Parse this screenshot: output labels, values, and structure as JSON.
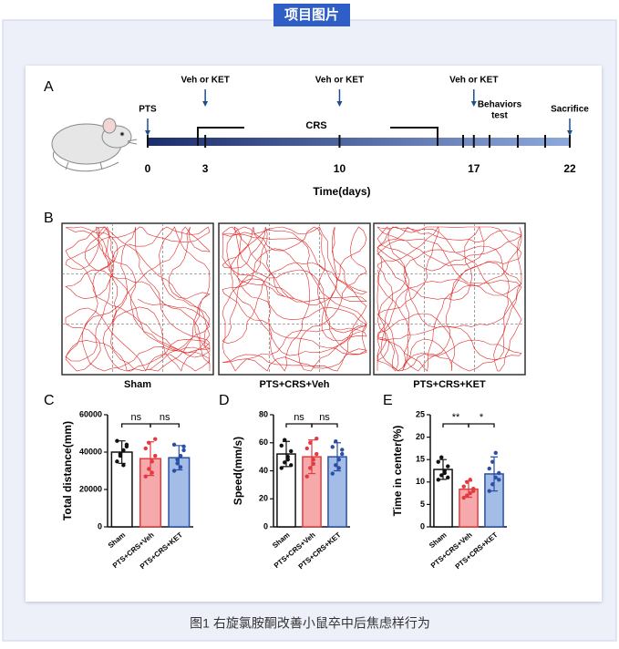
{
  "header": {
    "tag": "项目图片"
  },
  "panel_a": {
    "label": "A",
    "events": [
      "PTS",
      "Veh or KET",
      "Veh or KET",
      "Veh or KET",
      "Sacrifice"
    ],
    "crs_label": "CRS",
    "behaviors_label": [
      "Behaviors",
      "test"
    ],
    "ticks": [
      0,
      3,
      10,
      17,
      22
    ],
    "xlabel": "Time(days)"
  },
  "panel_b": {
    "label": "B",
    "groups": [
      "Sham",
      "PTS+CRS+Veh",
      "PTS+CRS+KET"
    ]
  },
  "chart_data": [
    {
      "type": "bar",
      "label": "C",
      "ylabel": "Total distance(mm)",
      "categories": [
        "Sham",
        "PTS+CRS+Veh",
        "PTS+CRS+KET"
      ],
      "values": [
        40000,
        36500,
        37000
      ],
      "errors": [
        6000,
        9000,
        6500
      ],
      "points": [
        [
          35000,
          38000,
          41000,
          43000,
          46000,
          39000,
          33000,
          44000
        ],
        [
          27000,
          31000,
          35000,
          38000,
          42000,
          45000,
          29000,
          47000
        ],
        [
          30000,
          34000,
          38000,
          41000,
          44000,
          36000,
          32000,
          43000
        ]
      ],
      "colors": [
        "#111111",
        "#e33a3f",
        "#2b4fa6"
      ],
      "fill_colors": [
        "#ffffff",
        "#f5a9ab",
        "#a3bde6"
      ],
      "significance": [
        "ns",
        "ns"
      ],
      "ylim": [
        0,
        60000
      ],
      "yticks": [
        0,
        20000,
        40000,
        60000
      ]
    },
    {
      "type": "bar",
      "label": "D",
      "ylabel": "Speed(mm/s)",
      "categories": [
        "Sham",
        "PTS+CRS+Veh",
        "PTS+CRS+KET"
      ],
      "values": [
        52,
        50,
        50
      ],
      "errors": [
        9,
        12,
        10
      ],
      "points": [
        [
          42,
          46,
          50,
          54,
          58,
          62,
          48,
          44
        ],
        [
          36,
          42,
          48,
          52,
          56,
          60,
          45,
          63
        ],
        [
          38,
          44,
          48,
          52,
          57,
          61,
          42,
          55
        ]
      ],
      "colors": [
        "#111111",
        "#e33a3f",
        "#2b4fa6"
      ],
      "fill_colors": [
        "#ffffff",
        "#f5a9ab",
        "#a3bde6"
      ],
      "significance": [
        "ns",
        "ns"
      ],
      "ylim": [
        0,
        80
      ],
      "yticks": [
        0,
        20,
        40,
        60,
        80
      ]
    },
    {
      "type": "bar",
      "label": "E",
      "ylabel": "Time in center(%)",
      "categories": [
        "Sham",
        "PTS+CRS+Veh",
        "PTS+CRS+KET"
      ],
      "values": [
        12.8,
        8.4,
        11.8
      ],
      "errors": [
        2.2,
        1.8,
        3.8
      ],
      "points": [
        [
          10.5,
          11.5,
          12.5,
          13.5,
          14.5,
          15.5,
          12,
          11
        ],
        [
          6.5,
          7,
          7.5,
          8.5,
          9,
          10,
          10.5,
          8
        ],
        [
          8,
          9.5,
          11,
          12,
          13,
          14.5,
          16.5,
          10.5
        ]
      ],
      "colors": [
        "#111111",
        "#e33a3f",
        "#2b4fa6"
      ],
      "fill_colors": [
        "#ffffff",
        "#f5a9ab",
        "#a3bde6"
      ],
      "significance": [
        "**",
        "*"
      ],
      "ylim": [
        0,
        25
      ],
      "yticks": [
        0,
        5,
        10,
        15,
        20,
        25
      ]
    }
  ],
  "caption": "图1 右旋氯胺酮改善小鼠卒中后焦虑样行为"
}
